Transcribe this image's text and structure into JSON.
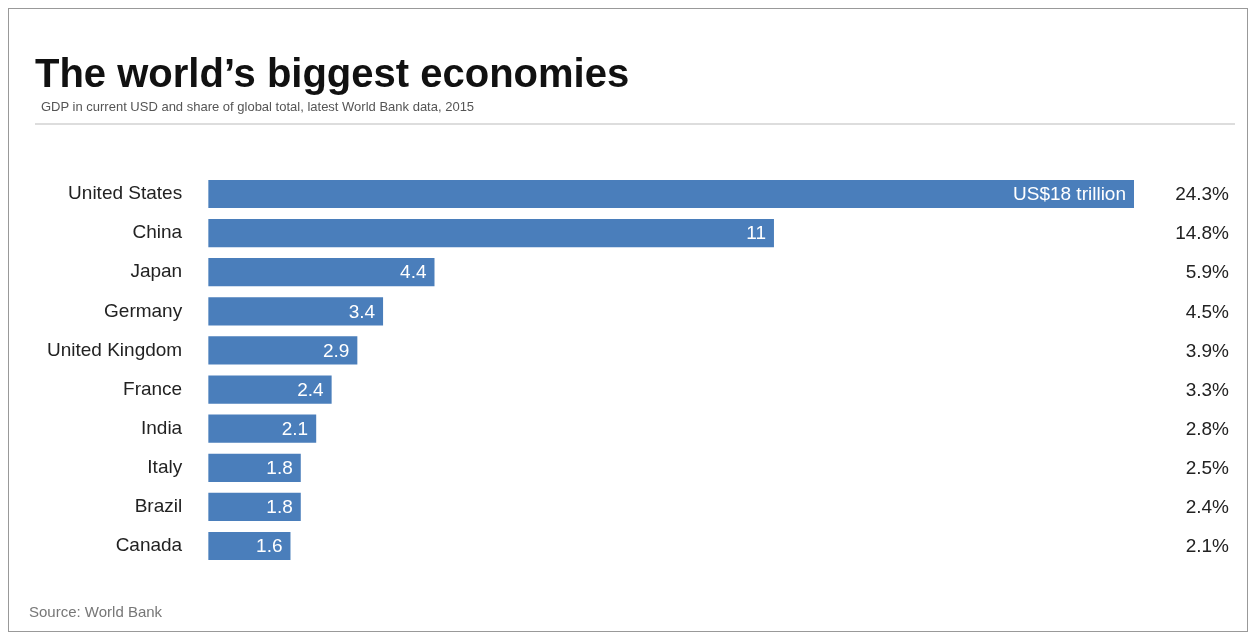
{
  "chart_data": {
    "type": "bar",
    "orientation": "horizontal",
    "title": "The world’s biggest economies",
    "subtitle": "GDP in current USD and share of global total, latest World Bank data, 2015",
    "categories": [
      "United States",
      "China",
      "Japan",
      "Germany",
      "United Kingdom",
      "France",
      "India",
      "Italy",
      "Brazil",
      "Canada"
    ],
    "values": [
      18,
      11,
      4.4,
      3.4,
      2.9,
      2.4,
      2.1,
      1.8,
      1.8,
      1.6
    ],
    "value_labels": [
      "US$18 trillion",
      "11",
      "4.4",
      "3.4",
      "2.9",
      "2.4",
      "2.1",
      "1.8",
      "1.8",
      "1.6"
    ],
    "color": "#4a7ebb",
    "xlim": [
      0,
      18
    ],
    "tick_labels": "y",
    "grid": false,
    "legend": false,
    "annotations": [
      "24.3%",
      "14.8%",
      "5.9%",
      "4.5%",
      "3.9%",
      "3.3%",
      "2.8%",
      "2.5%",
      "2.4%",
      "2.1%",
      "Source: World Bank"
    ]
  }
}
